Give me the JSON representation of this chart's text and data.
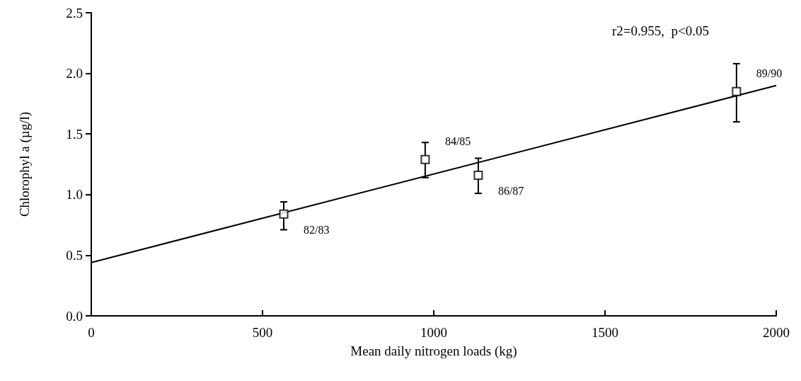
{
  "chart_data": {
    "type": "scatter",
    "xlabel": "Mean daily nitrogen loads (kg)",
    "ylabel": "Chlorophyl a (µg/l)",
    "xlim": [
      0,
      2000
    ],
    "xticks": [
      0,
      500,
      1000,
      1500,
      2000
    ],
    "ylim": [
      0,
      2.5
    ],
    "yticks": [
      {
        "value": 0,
        "label": "0.0"
      },
      {
        "value": 0.5,
        "label": "0.5"
      },
      {
        "value": 1,
        "label": "1.0"
      },
      {
        "value": 1.5,
        "label": "1.5"
      },
      {
        "value": 2,
        "label": "2.0"
      },
      {
        "value": 2.5,
        "label": "2.5"
      }
    ],
    "grid": false,
    "marker": "square",
    "series": [
      {
        "color": "#000000",
        "x": [
          562,
          975,
          1130,
          1884
        ],
        "values": [
          0.84,
          1.29,
          1.16,
          1.85
        ],
        "errors": [
          [
            0.71,
            0.94
          ],
          [
            1.14,
            1.43
          ],
          [
            1.01,
            1.3
          ],
          [
            1.6,
            2.08
          ]
        ]
      },
      {
        "type": "line",
        "color": "#000000",
        "x": [
          0,
          2000
        ],
        "values": [
          0.44,
          1.9
        ],
        "marker": "none",
        "line_style": "solid"
      }
    ],
    "annotations": [
      "r2=0.955,  p<0.05",
      {
        "text": "82/83",
        "x": 562,
        "y": 0.84
      },
      {
        "text": "84/85",
        "x": 975,
        "y": 1.29
      },
      {
        "text": "86/87",
        "x": 1130,
        "y": 1.16
      },
      {
        "text": "89/90",
        "x": 1884,
        "y": 1.85
      }
    ]
  }
}
